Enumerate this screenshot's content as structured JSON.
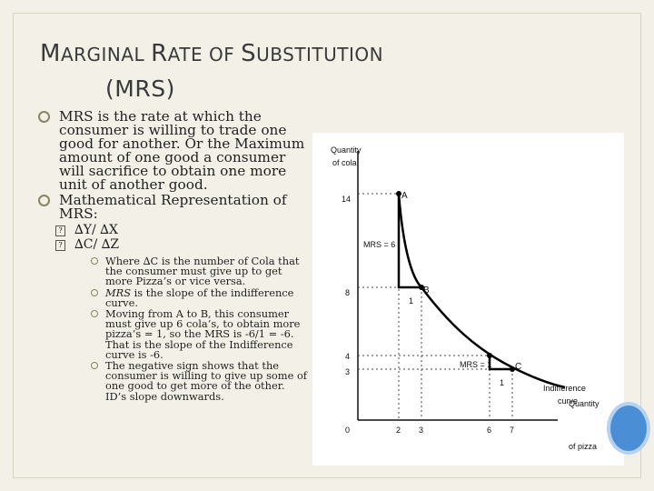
{
  "slide": {
    "title_line1": {
      "m": "M",
      "arginal": "ARGINAL ",
      "r": "R",
      "ate": "ATE OF ",
      "s": "S",
      "ubst": "UBSTITUTION"
    },
    "title_line2": "(MRS)"
  },
  "bullets": [
    {
      "text": "MRS is the rate at which the consumer is willing to trade one good for another. Or the Maximum amount of one good a consumer will sacrifice to obtain one more unit of another good."
    },
    {
      "text": "Mathematical Representation of MRS:"
    }
  ],
  "sub_bullets": [
    {
      "marker": "?",
      "text": "∆Y/ ∆X"
    },
    {
      "marker": "?",
      "text": "∆C/ ∆Z"
    }
  ],
  "sub_sub_bullets": [
    {
      "text": "Where ∆C is the number of Cola that the consumer must give up to get more Pizza’s or vice versa."
    },
    {
      "italic": "MRS",
      "text": " is the slope of the indifference curve."
    },
    {
      "text": "Moving from A to B, this consumer must give up 6 cola’s, to obtain more pizza’s = 1, so the MRS is -6/1 = -6. That is the slope of the Indifference curve is -6."
    },
    {
      "text": "The negative sign shows that the consumer is willing to give up some of one good to get more of the other. ID’s slope downwards."
    }
  ],
  "figure": {
    "ylabel_1": "Quantity",
    "ylabel_2": "of cola",
    "xlabel_1": "Quantity",
    "xlabel_2": "of pizza",
    "y_ticks": [
      "14",
      "8",
      "4",
      "3"
    ],
    "x_ticks": [
      "0",
      "2",
      "3",
      "6",
      "7"
    ],
    "points": [
      "A",
      "B",
      "C"
    ],
    "mrs_6": "MRS = 6",
    "mrs_1": "MRS = 1",
    "delta_1a": "1",
    "delta_1b": "1",
    "curve_label_1": "Indifference",
    "curve_label_2": "curve"
  },
  "chart_data": {
    "type": "line",
    "title": "",
    "xlabel": "Quantity of pizza",
    "ylabel": "Quantity of cola",
    "series": [
      {
        "name": "Indifference curve",
        "x": [
          2,
          3,
          6,
          7
        ],
        "y": [
          14,
          8,
          4,
          3
        ]
      }
    ],
    "points": [
      {
        "label": "A",
        "x": 2,
        "y": 14
      },
      {
        "label": "B",
        "x": 3,
        "y": 8
      },
      {
        "label": "C",
        "x": 7,
        "y": 3
      }
    ],
    "annotations": [
      "MRS = 6",
      "MRS = 1",
      "Indifference curve"
    ]
  }
}
